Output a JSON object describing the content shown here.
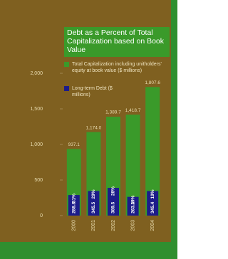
{
  "chart_data": {
    "type": "bar",
    "title": "Debt as a Percent of Total Capitalization based on Book Value",
    "categories": [
      "2000",
      "2001",
      "2002",
      "2003",
      "2004"
    ],
    "series": [
      {
        "name": "Total Capitalization including unitholders' equity at book value ($ millions)",
        "color": "#3a9a2a",
        "values": [
          937.1,
          1174.0,
          1389.7,
          1418.7,
          1807.6
        ],
        "value_labels": [
          "937.1",
          "1,174.0",
          "1,389.7",
          "1,418.7",
          "1,807.6"
        ]
      },
      {
        "name": "Long-term Debt ($ millions)",
        "color": "#1c1c8a",
        "values": [
          288.8,
          345.5,
          389.5,
          263.3,
          345.4
        ]
      }
    ],
    "debt_percent": {
      "values": [
        31,
        29,
        28,
        19,
        19
      ],
      "value_labels": [
        "31%",
        "29%",
        "28%",
        "19%",
        "19%"
      ]
    },
    "ylim": [
      0,
      2000
    ],
    "yticks": [
      0,
      500,
      {
        "value": 1000,
        "label": "1,000"
      },
      {
        "value": 1500,
        "label": "1,500"
      },
      {
        "value": 2000,
        "label": "2,000"
      }
    ]
  }
}
